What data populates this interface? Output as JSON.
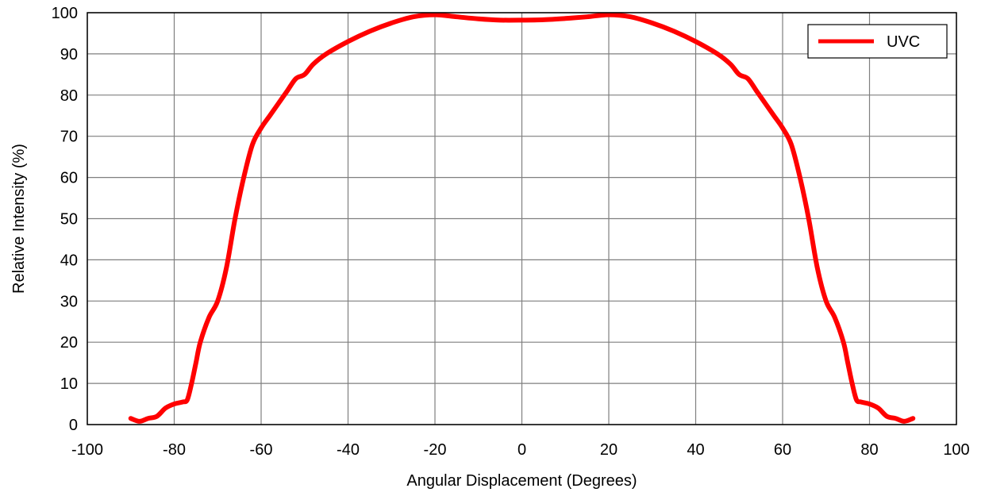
{
  "chart_data": {
    "type": "line",
    "title": "",
    "xlabel": "Angular Displacement (Degrees)",
    "ylabel": "Relative Intensity (%)",
    "xlim": [
      -100,
      100
    ],
    "ylim": [
      0,
      100
    ],
    "xticks": [
      -100,
      -80,
      -60,
      -40,
      -20,
      0,
      20,
      40,
      60,
      80,
      100
    ],
    "yticks": [
      0,
      10,
      20,
      30,
      40,
      50,
      60,
      70,
      80,
      90,
      100
    ],
    "grid": true,
    "legend_position": "top-right",
    "series": [
      {
        "name": "UVC",
        "color": "#ff0000",
        "x": [
          -90,
          -88,
          -86,
          -84,
          -82,
          -80,
          -78,
          -77,
          -76,
          -75,
          -74,
          -72,
          -70,
          -68,
          -66,
          -64,
          -62,
          -60,
          -58,
          -56,
          -54,
          -52,
          -50,
          -48,
          -45,
          -40,
          -35,
          -30,
          -25,
          -20,
          -15,
          -10,
          -5,
          0,
          5,
          10,
          15,
          20,
          25,
          30,
          35,
          40,
          45,
          48,
          50,
          52,
          54,
          56,
          58,
          60,
          62,
          64,
          66,
          68,
          70,
          72,
          74,
          75,
          76,
          77,
          78,
          80,
          82,
          84,
          86,
          88,
          90
        ],
        "y": [
          1.5,
          0.8,
          1.5,
          2,
          4,
          5,
          5.5,
          6,
          10,
          15,
          20,
          26,
          30,
          38,
          50,
          60,
          68,
          72,
          75,
          78,
          81,
          84,
          85,
          87.5,
          90,
          93,
          95.5,
          97.5,
          99,
          99.5,
          99,
          98.5,
          98.2,
          98.2,
          98.3,
          98.6,
          99,
          99.5,
          99,
          97.5,
          95.5,
          93,
          90,
          87.5,
          85,
          84,
          81,
          78,
          75,
          72,
          68,
          60,
          50,
          38,
          30,
          26,
          20,
          15,
          10,
          6,
          5.5,
          5,
          4,
          2,
          1.5,
          0.8,
          1.5
        ]
      }
    ]
  }
}
